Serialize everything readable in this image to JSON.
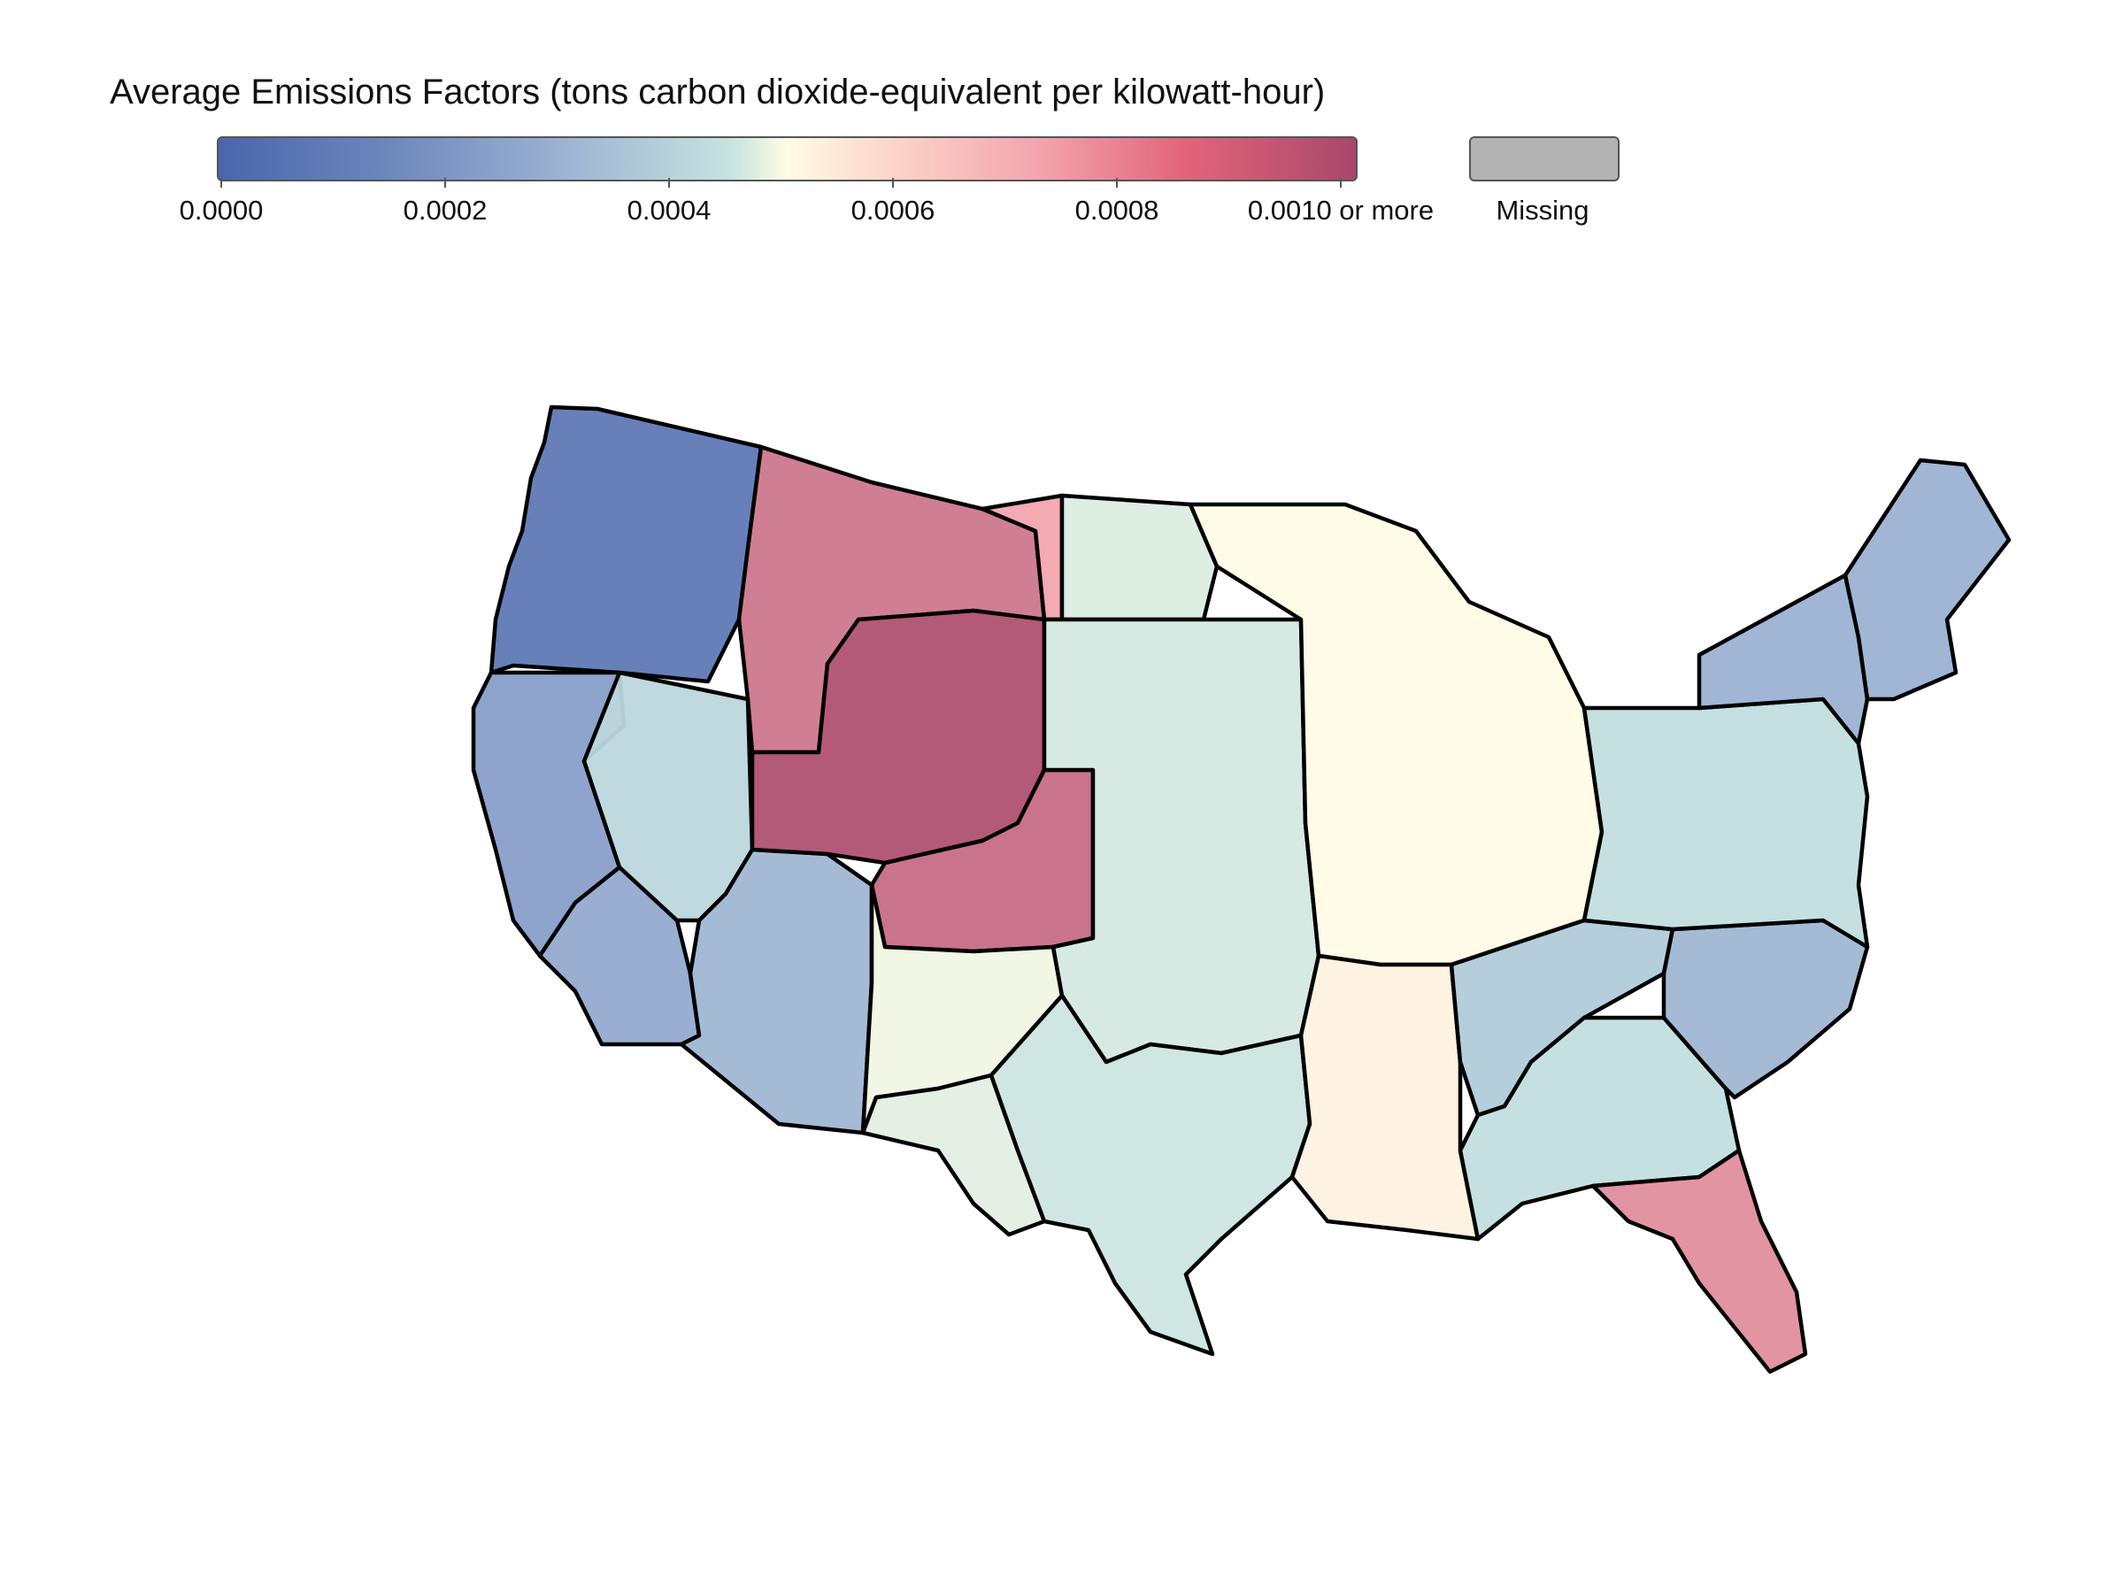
{
  "legend": {
    "title": "Average Emissions Factors (tons carbon dioxide-equivalent per kilowatt-hour)",
    "ticks": [
      "0.0000",
      "0.0002",
      "0.0004",
      "0.0006",
      "0.0008",
      "0.0010 or more"
    ],
    "missing_label": "Missing",
    "missing_color": "#b3b3b3",
    "scale": {
      "min": 0.0,
      "max": 0.001,
      "palette": [
        "#4a66ac",
        "#9cb2d2",
        "#c6e3df",
        "#fffbe6",
        "#f2a5ae",
        "#a8486b"
      ]
    }
  },
  "map": {
    "subject": "Contiguous United States electricity balancing regions",
    "regions": [
      {
        "id": "pacific-northwest",
        "value": 5e-05
      },
      {
        "id": "california-north",
        "value": 0.00015
      },
      {
        "id": "california-south",
        "value": 0.00018
      },
      {
        "id": "nevada",
        "value": 0.00035
      },
      {
        "id": "arizona",
        "value": 0.00022
      },
      {
        "id": "idaho-montana-west",
        "value": 0.0009
      },
      {
        "id": "montana-east",
        "value": 0.0008
      },
      {
        "id": "wyoming-utah",
        "value": 0.00098
      },
      {
        "id": "colorado",
        "value": 0.00092
      },
      {
        "id": "new-mexico",
        "value": 0.00055
      },
      {
        "id": "southwest-texas",
        "value": 0.0005
      },
      {
        "id": "north-dakota",
        "value": 0.00048
      },
      {
        "id": "great-plains",
        "value": 0.00045
      },
      {
        "id": "texas",
        "value": 0.00042
      },
      {
        "id": "midwest",
        "value": 0.0006
      },
      {
        "id": "mississippi-valley",
        "value": 0.00062
      },
      {
        "id": "tennessee-valley",
        "value": 0.0003
      },
      {
        "id": "southeast",
        "value": 0.00038
      },
      {
        "id": "carolinas",
        "value": 0.00022
      },
      {
        "id": "florida",
        "value": 0.00085
      },
      {
        "id": "pjm",
        "value": 0.00038
      },
      {
        "id": "new-york",
        "value": 0.0002
      },
      {
        "id": "new-england",
        "value": 0.0002
      }
    ]
  }
}
